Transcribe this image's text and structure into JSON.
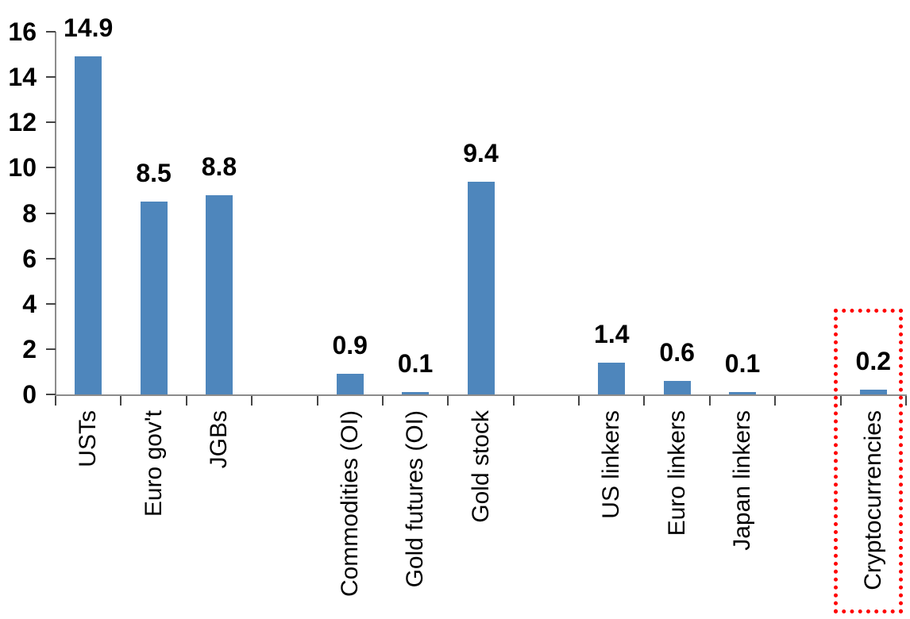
{
  "chart_data": {
    "type": "bar",
    "title": "",
    "xlabel": "",
    "ylabel": "",
    "categories": [
      "USTs",
      "Euro gov't",
      "JGBs",
      "Commodities (OI)",
      "Gold futures (OI)",
      "Gold stock",
      "US linkers",
      "Euro linkers",
      "Japan linkers",
      "Cryptocurrencies"
    ],
    "values": [
      14.9,
      8.5,
      8.8,
      0.9,
      0.1,
      9.4,
      1.4,
      0.6,
      0.1,
      0.2
    ],
    "data_labels": [
      "14.9",
      "8.5",
      "8.8",
      "0.9",
      "0.1",
      "9.4",
      "1.4",
      "0.6",
      "0.1",
      "0.2"
    ],
    "group_sizes": [
      3,
      3,
      3,
      1
    ],
    "ylim": [
      0,
      16
    ],
    "ytick_step": 2,
    "ytick_labels": [
      "0",
      "2",
      "4",
      "6",
      "8",
      "10",
      "12",
      "14",
      "16"
    ],
    "grid": false,
    "legend": false,
    "bar_color": "#4e86bc",
    "axis_color": "#8c8c8c",
    "tick_color": "#454545",
    "text_color": "#000000",
    "highlight": {
      "category": "Cryptocurrencies",
      "shape": "dotted-rectangle",
      "color": "#ff0000"
    }
  }
}
